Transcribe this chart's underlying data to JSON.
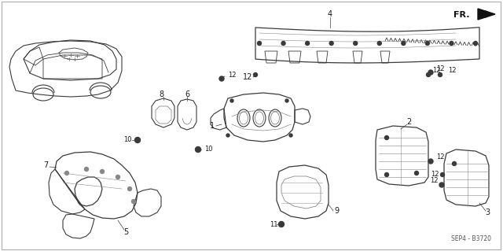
{
  "bg_color": "#ffffff",
  "text_color": "#1a1a1a",
  "line_color": "#3a3a3a",
  "title_bottom_right": "SEP4 - B3720",
  "fr_label": "FR.",
  "fig_width": 6.4,
  "fig_height": 3.19,
  "dpi": 100,
  "label_fontsize": 7.0,
  "small_fontsize": 6.0
}
